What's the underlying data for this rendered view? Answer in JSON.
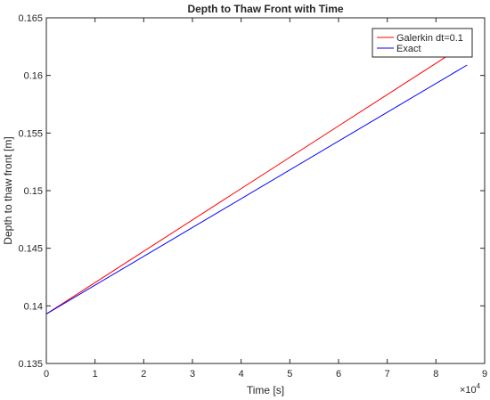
{
  "chart_data": {
    "type": "line",
    "title": "Depth to Thaw Front with Time",
    "xlabel": "Time [s]",
    "ylabel": "Depth to thaw front [m]",
    "x_exponent_label": "×10",
    "x_exponent_power": "4",
    "xlim": [
      0,
      90000
    ],
    "ylim": [
      0.135,
      0.165
    ],
    "xticks": [
      0,
      10000,
      20000,
      30000,
      40000,
      50000,
      60000,
      70000,
      80000,
      90000
    ],
    "xtick_labels": [
      "0",
      "1",
      "2",
      "3",
      "4",
      "5",
      "6",
      "7",
      "8",
      "9"
    ],
    "yticks": [
      0.135,
      0.14,
      0.145,
      0.15,
      0.155,
      0.16,
      0.165
    ],
    "ytick_labels": [
      "0.135",
      "0.14",
      "0.145",
      "0.15",
      "0.155",
      "0.16",
      "0.165"
    ],
    "grid": false,
    "legend_position": "top-right",
    "series": [
      {
        "name": "Galerkin dt=0.1",
        "color": "#ff0000",
        "x": [
          0,
          86400
        ],
        "y": [
          0.1393,
          0.1628
        ]
      },
      {
        "name": "Exact",
        "color": "#0000ff",
        "x": [
          0,
          86400
        ],
        "y": [
          0.1393,
          0.1609
        ]
      }
    ]
  }
}
